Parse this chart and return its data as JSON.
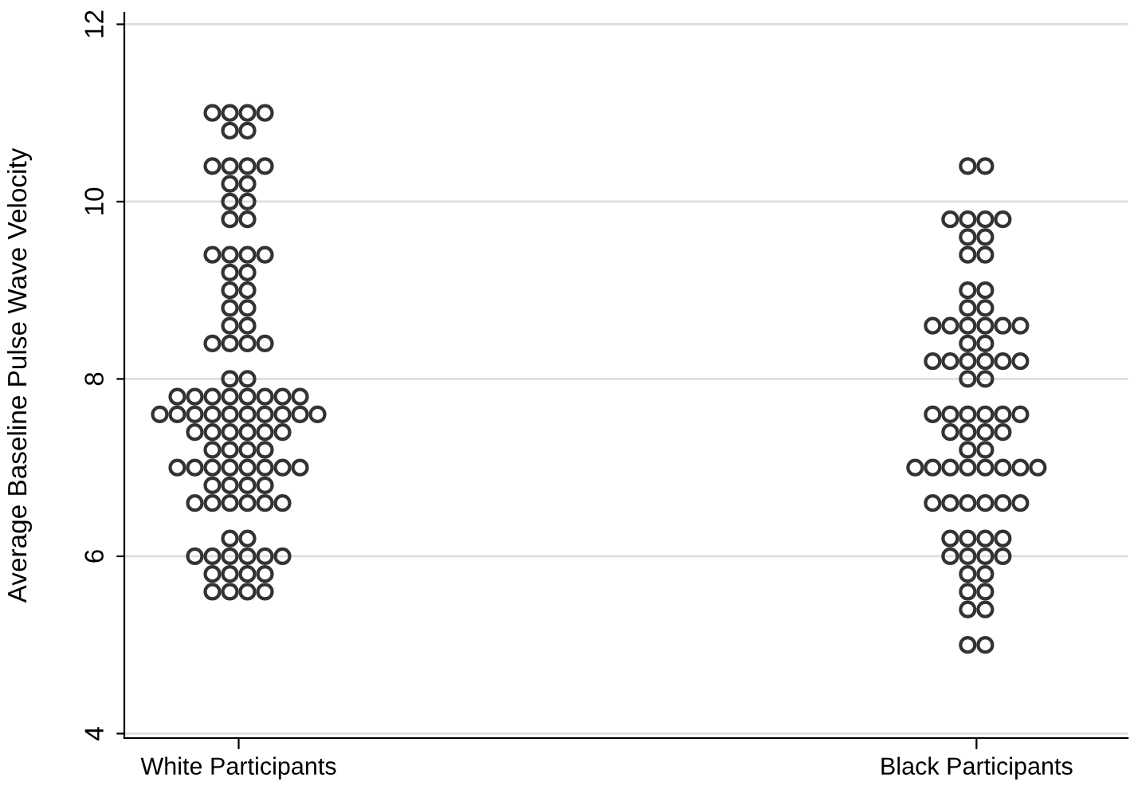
{
  "chart_data": {
    "type": "scatter",
    "ylabel": "Average Baseline Pulse Wave Velocity",
    "categories": [
      "White Participants",
      "Black Participants"
    ],
    "series": [
      {
        "color": "#333333",
        "x": [
          "White Participants",
          "White Participants",
          "White Participants",
          "White Participants",
          "White Participants",
          "White Participants",
          "White Participants",
          "White Participants",
          "White Participants",
          "White Participants",
          "White Participants",
          "White Participants",
          "White Participants",
          "White Participants",
          "White Participants",
          "White Participants",
          "White Participants",
          "White Participants",
          "White Participants",
          "White Participants",
          "White Participants",
          "White Participants",
          "White Participants",
          "White Participants",
          "White Participants",
          "White Participants",
          "White Participants",
          "White Participants",
          "White Participants",
          "White Participants",
          "White Participants",
          "White Participants",
          "White Participants",
          "White Participants",
          "White Participants",
          "White Participants",
          "White Participants",
          "White Participants",
          "White Participants",
          "White Participants",
          "White Participants",
          "White Participants",
          "White Participants",
          "White Participants",
          "White Participants",
          "White Participants",
          "White Participants",
          "White Participants",
          "White Participants",
          "White Participants",
          "White Participants",
          "White Participants",
          "White Participants",
          "White Participants",
          "White Participants",
          "White Participants",
          "White Participants",
          "White Participants",
          "White Participants",
          "White Participants",
          "White Participants",
          "White Participants",
          "White Participants",
          "White Participants",
          "White Participants",
          "White Participants",
          "White Participants",
          "White Participants",
          "White Participants",
          "White Participants",
          "White Participants",
          "White Participants",
          "White Participants",
          "White Participants",
          "White Participants",
          "White Participants",
          "White Participants",
          "White Participants",
          "White Participants",
          "White Participants",
          "White Participants",
          "White Participants",
          "White Participants",
          "White Participants",
          "White Participants",
          "White Participants",
          "White Participants",
          "White Participants",
          "White Participants",
          "White Participants",
          "White Participants",
          "White Participants",
          "White Participants",
          "White Participants",
          "White Participants",
          "White Participants"
        ],
        "values": [
          11.0,
          11.0,
          11.0,
          11.0,
          10.8,
          10.8,
          10.4,
          10.4,
          10.4,
          10.4,
          10.2,
          10.2,
          10.0,
          10.0,
          9.8,
          9.8,
          9.4,
          9.4,
          9.4,
          9.4,
          9.2,
          9.2,
          9.0,
          9.0,
          8.8,
          8.8,
          8.6,
          8.6,
          8.4,
          8.4,
          8.4,
          8.4,
          8.0,
          8.0,
          7.8,
          7.8,
          7.8,
          7.8,
          7.8,
          7.8,
          7.8,
          7.8,
          7.6,
          7.6,
          7.6,
          7.6,
          7.6,
          7.6,
          7.6,
          7.6,
          7.6,
          7.6,
          7.4,
          7.4,
          7.4,
          7.4,
          7.4,
          7.4,
          7.2,
          7.2,
          7.2,
          7.2,
          7.0,
          7.0,
          7.0,
          7.0,
          7.0,
          7.0,
          7.0,
          7.0,
          6.8,
          6.8,
          6.8,
          6.8,
          6.6,
          6.6,
          6.6,
          6.6,
          6.6,
          6.6,
          6.2,
          6.2,
          6.0,
          6.0,
          6.0,
          6.0,
          6.0,
          6.0,
          5.8,
          5.8,
          5.8,
          5.8,
          5.6,
          5.6,
          5.6,
          5.6
        ]
      },
      {
        "color": "#333333",
        "x": [
          "Black Participants",
          "Black Participants",
          "Black Participants",
          "Black Participants",
          "Black Participants",
          "Black Participants",
          "Black Participants",
          "Black Participants",
          "Black Participants",
          "Black Participants",
          "Black Participants",
          "Black Participants",
          "Black Participants",
          "Black Participants",
          "Black Participants",
          "Black Participants",
          "Black Participants",
          "Black Participants",
          "Black Participants",
          "Black Participants",
          "Black Participants",
          "Black Participants",
          "Black Participants",
          "Black Participants",
          "Black Participants",
          "Black Participants",
          "Black Participants",
          "Black Participants",
          "Black Participants",
          "Black Participants",
          "Black Participants",
          "Black Participants",
          "Black Participants",
          "Black Participants",
          "Black Participants",
          "Black Participants",
          "Black Participants",
          "Black Participants",
          "Black Participants",
          "Black Participants",
          "Black Participants",
          "Black Participants",
          "Black Participants",
          "Black Participants",
          "Black Participants",
          "Black Participants",
          "Black Participants",
          "Black Participants",
          "Black Participants",
          "Black Participants",
          "Black Participants",
          "Black Participants",
          "Black Participants",
          "Black Participants",
          "Black Participants",
          "Black Participants",
          "Black Participants",
          "Black Participants",
          "Black Participants",
          "Black Participants",
          "Black Participants",
          "Black Participants",
          "Black Participants",
          "Black Participants",
          "Black Participants",
          "Black Participants",
          "Black Participants",
          "Black Participants",
          "Black Participants",
          "Black Participants",
          "Black Participants",
          "Black Participants"
        ],
        "values": [
          10.4,
          10.4,
          9.8,
          9.8,
          9.8,
          9.8,
          9.6,
          9.6,
          9.4,
          9.4,
          9.0,
          9.0,
          8.8,
          8.8,
          8.6,
          8.6,
          8.6,
          8.6,
          8.6,
          8.6,
          8.4,
          8.4,
          8.2,
          8.2,
          8.2,
          8.2,
          8.2,
          8.2,
          8.0,
          8.0,
          7.6,
          7.6,
          7.6,
          7.6,
          7.6,
          7.6,
          7.4,
          7.4,
          7.4,
          7.4,
          7.2,
          7.2,
          7.0,
          7.0,
          7.0,
          7.0,
          7.0,
          7.0,
          7.0,
          7.0,
          6.6,
          6.6,
          6.6,
          6.6,
          6.6,
          6.6,
          6.2,
          6.2,
          6.2,
          6.2,
          6.0,
          6.0,
          6.0,
          6.0,
          5.8,
          5.8,
          5.6,
          5.6,
          5.4,
          5.4,
          5.0,
          5.0
        ]
      }
    ],
    "ylim": [
      3.95,
      12.13
    ],
    "yticks": [
      4,
      6,
      8,
      10,
      12
    ],
    "grid": "y",
    "marker": "circle"
  }
}
